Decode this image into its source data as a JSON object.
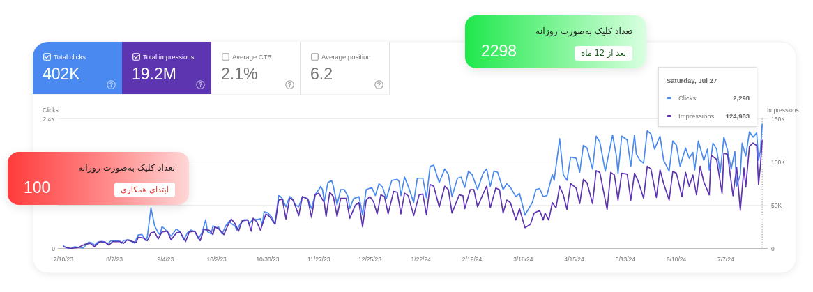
{
  "chart_data": {
    "type": "line",
    "ylabel": "Clicks",
    "y2label": "Impressions",
    "xlim": [
      "2023-07-07",
      "2024-07-30"
    ],
    "xticks": [
      {
        "value": "2023-07-10",
        "label": "7/10/23"
      },
      {
        "value": "2023-08-07",
        "label": "8/7/23"
      },
      {
        "value": "2023-09-04",
        "label": "9/4/23"
      },
      {
        "value": "2023-10-02",
        "label": "10/2/23"
      },
      {
        "value": "2023-10-30",
        "label": "10/30/23"
      },
      {
        "value": "2023-11-27",
        "label": "11/27/23"
      },
      {
        "value": "2023-12-25",
        "label": "12/25/23"
      },
      {
        "value": "2024-01-22",
        "label": "1/22/24"
      },
      {
        "value": "2024-02-19",
        "label": "2/19/24"
      },
      {
        "value": "2024-03-18",
        "label": "3/18/24"
      },
      {
        "value": "2024-04-15",
        "label": "4/15/24"
      },
      {
        "value": "2024-05-13",
        "label": "5/13/24"
      },
      {
        "value": "2024-06-10",
        "label": "6/10/24"
      },
      {
        "value": "2024-07-07",
        "label": "7/7/24"
      }
    ],
    "ylim": [
      0,
      2400
    ],
    "yticks": [
      0,
      {
        "value": 800,
        "label": null
      },
      {
        "value": 1600,
        "label": null
      },
      {
        "value": 2400,
        "label": "2.4K"
      }
    ],
    "y2lim": [
      0,
      150000
    ],
    "y2ticks": [
      0,
      {
        "value": 50000,
        "label": "50K"
      },
      {
        "value": 100000,
        "label": "100K"
      },
      {
        "value": 150000,
        "label": "150K"
      }
    ],
    "grid": "y",
    "legend": "top right",
    "series": [
      {
        "name": "Clicks",
        "color": "#4a8af0",
        "x": [
          "2023-07-10",
          "2023-07-12",
          "2023-07-14",
          "2023-07-16",
          "2023-07-18",
          "2023-07-21",
          "2023-07-23",
          "2023-07-24",
          "2023-07-26",
          "2023-07-27",
          "2023-07-29",
          "2023-07-31",
          "2023-08-02",
          "2023-08-03",
          "2023-08-05",
          "2023-08-08",
          "2023-08-10",
          "2023-08-11",
          "2023-08-12",
          "2023-08-15",
          "2023-08-17",
          "2023-08-18",
          "2023-08-20",
          "2023-08-22",
          "2023-08-23",
          "2023-08-24",
          "2023-08-25",
          "2023-08-27",
          "2023-08-29",
          "2023-08-31",
          "2023-09-01",
          "2023-09-02",
          "2023-09-03",
          "2023-09-05",
          "2023-09-07",
          "2023-09-08",
          "2023-09-10",
          "2023-09-12",
          "2023-09-14",
          "2023-09-16",
          "2023-09-18",
          "2023-09-20",
          "2023-09-22",
          "2023-09-24",
          "2023-09-26",
          "2023-09-27",
          "2023-09-29",
          "2023-09-30",
          "2023-10-02",
          "2023-10-03",
          "2023-10-05",
          "2023-10-07",
          "2023-10-09",
          "2023-10-10",
          "2023-10-12",
          "2023-10-13",
          "2023-10-15",
          "2023-10-17",
          "2023-10-19",
          "2023-10-20",
          "2023-10-22",
          "2023-10-24",
          "2023-10-26",
          "2023-10-27",
          "2023-10-28",
          "2023-10-30",
          "2023-11-01",
          "2023-11-03",
          "2023-11-05",
          "2023-11-06",
          "2023-11-07",
          "2023-11-09",
          "2023-11-11",
          "2023-11-12",
          "2023-11-14",
          "2023-11-16",
          "2023-11-18",
          "2023-11-21",
          "2023-11-23",
          "2023-11-25",
          "2023-11-27",
          "2023-11-28",
          "2023-11-29",
          "2023-11-30",
          "2023-12-02",
          "2023-12-04",
          "2023-12-05",
          "2023-12-07",
          "2023-12-09",
          "2023-12-11",
          "2023-12-13",
          "2023-12-14",
          "2023-12-16",
          "2023-12-19",
          "2023-12-21",
          "2023-12-23",
          "2023-12-26",
          "2023-12-28",
          "2023-12-30",
          "2024-01-01",
          "2024-01-03",
          "2024-01-06",
          "2024-01-09",
          "2024-01-10",
          "2024-01-11",
          "2024-01-13",
          "2024-01-15",
          "2024-01-18",
          "2024-01-20",
          "2024-01-23",
          "2024-01-25",
          "2024-01-27",
          "2024-01-29",
          "2024-01-30",
          "2024-02-01",
          "2024-02-04",
          "2024-02-06",
          "2024-02-08",
          "2024-02-11",
          "2024-02-13",
          "2024-02-15",
          "2024-02-17",
          "2024-02-19",
          "2024-02-22",
          "2024-02-25",
          "2024-02-27",
          "2024-02-29",
          "2024-03-02",
          "2024-03-04",
          "2024-03-07",
          "2024-03-09",
          "2024-03-11",
          "2024-03-14",
          "2024-03-16",
          "2024-03-19",
          "2024-03-23",
          "2024-03-25",
          "2024-03-27",
          "2024-03-29",
          "2024-03-31",
          "2024-04-03",
          "2024-04-04",
          "2024-04-07",
          "2024-04-09",
          "2024-04-11",
          "2024-04-13",
          "2024-04-16",
          "2024-04-18",
          "2024-04-20",
          "2024-04-22",
          "2024-04-25",
          "2024-04-27",
          "2024-04-29",
          "2024-05-02",
          "2024-05-06",
          "2024-05-08",
          "2024-05-09",
          "2024-05-11",
          "2024-05-14",
          "2024-05-16",
          "2024-05-18",
          "2024-05-19",
          "2024-05-21",
          "2024-05-23",
          "2024-05-25",
          "2024-05-27",
          "2024-05-29",
          "2024-06-01",
          "2024-06-03",
          "2024-06-06",
          "2024-06-08",
          "2024-06-10",
          "2024-06-12",
          "2024-06-15",
          "2024-06-17",
          "2024-06-19",
          "2024-06-20",
          "2024-06-22",
          "2024-06-25",
          "2024-06-27",
          "2024-06-28",
          "2024-06-30",
          "2024-07-02",
          "2024-07-04",
          "2024-07-06",
          "2024-07-08",
          "2024-07-10",
          "2024-07-12",
          "2024-07-13",
          "2024-07-15",
          "2024-07-16",
          "2024-07-18",
          "2024-07-20",
          "2024-07-22",
          "2024-07-24",
          "2024-07-25",
          "2024-07-26",
          "2024-07-27"
        ],
        "values": [
          50,
          10,
          0,
          30,
          20,
          10,
          90,
          120,
          100,
          60,
          120,
          130,
          120,
          80,
          140,
          150,
          130,
          100,
          150,
          160,
          120,
          100,
          250,
          260,
          210,
          150,
          210,
          750,
          420,
          290,
          250,
          400,
          380,
          310,
          230,
          270,
          360,
          310,
          160,
          290,
          340,
          310,
          180,
          290,
          530,
          310,
          270,
          420,
          380,
          400,
          270,
          420,
          510,
          460,
          420,
          340,
          460,
          530,
          530,
          460,
          550,
          530,
          550,
          440,
          680,
          660,
          590,
          460,
          980,
          960,
          920,
          770,
          960,
          940,
          810,
          770,
          960,
          920,
          740,
          1000,
          1090,
          1150,
          1090,
          870,
          1220,
          1260,
          1150,
          810,
          1090,
          1090,
          960,
          740,
          920,
          960,
          620,
          1090,
          1130,
          980,
          1200,
          1130,
          920,
          1260,
          1280,
          1240,
          980,
          1320,
          1150,
          850,
          1300,
          1300,
          940,
          1520,
          1540,
          1430,
          1220,
          1470,
          1370,
          960,
          1300,
          1320,
          1130,
          1430,
          1370,
          1090,
          1390,
          1470,
          1150,
          1430,
          1410,
          1090,
          1200,
          1130,
          960,
          1020,
          620,
          850,
          1090,
          1110,
          960,
          980,
          1370,
          1260,
          2030,
          1370,
          1260,
          1690,
          1670,
          1410,
          1910,
          1860,
          1470,
          2080,
          1970,
          1430,
          2100,
          1730,
          1390,
          2080,
          2010,
          1520,
          2100,
          1750,
          1630,
          1580,
          2180,
          2120,
          1840,
          2080,
          1630,
          1430,
          1990,
          1910,
          1520,
          1860,
          1670,
          1780,
          1450,
          1990,
          1630,
          1840,
          1450,
          1950,
          1840,
          1410,
          2060,
          1820,
          1470,
          1800,
          1150,
          1370,
          1950,
          1710,
          2160,
          2060,
          2140,
          1630,
          1800,
          2298
        ]
      },
      {
        "name": "Impressions",
        "color": "#5e35b1",
        "axis": "y2",
        "x": [
          "2023-07-10",
          "2023-07-14",
          "2023-07-18",
          "2023-07-22",
          "2023-07-25",
          "2023-07-27",
          "2023-07-30",
          "2023-08-02",
          "2023-08-04",
          "2023-08-06",
          "2023-08-10",
          "2023-08-12",
          "2023-08-14",
          "2023-08-17",
          "2023-08-19",
          "2023-08-20",
          "2023-08-23",
          "2023-08-25",
          "2023-08-27",
          "2023-08-29",
          "2023-08-31",
          "2023-09-02",
          "2023-09-05",
          "2023-09-07",
          "2023-09-10",
          "2023-09-12",
          "2023-09-15",
          "2023-09-17",
          "2023-09-20",
          "2023-09-23",
          "2023-09-25",
          "2023-09-28",
          "2023-09-30",
          "2023-10-01",
          "2023-10-03",
          "2023-10-06",
          "2023-10-08",
          "2023-10-10",
          "2023-10-12",
          "2023-10-14",
          "2023-10-16",
          "2023-10-19",
          "2023-10-21",
          "2023-10-22",
          "2023-10-24",
          "2023-10-26",
          "2023-10-29",
          "2023-10-31",
          "2023-11-03",
          "2023-11-05",
          "2023-11-07",
          "2023-11-09",
          "2023-11-11",
          "2023-11-13",
          "2023-11-16",
          "2023-11-18",
          "2023-11-21",
          "2023-11-23",
          "2023-11-25",
          "2023-11-27",
          "2023-11-30",
          "2023-12-01",
          "2023-12-03",
          "2023-12-05",
          "2023-12-07",
          "2023-12-09",
          "2023-12-12",
          "2023-12-14",
          "2023-12-17",
          "2023-12-19",
          "2023-12-21",
          "2023-12-23",
          "2023-12-25",
          "2023-12-27",
          "2023-12-29",
          "2023-12-31",
          "2024-01-02",
          "2024-01-04",
          "2024-01-07",
          "2024-01-09",
          "2024-01-11",
          "2024-01-13",
          "2024-01-15",
          "2024-01-18",
          "2024-01-21",
          "2024-01-23",
          "2024-01-25",
          "2024-01-27",
          "2024-01-29",
          "2024-02-01",
          "2024-02-04",
          "2024-02-06",
          "2024-02-08",
          "2024-02-12",
          "2024-02-14",
          "2024-02-15",
          "2024-02-18",
          "2024-02-20",
          "2024-02-22",
          "2024-02-25",
          "2024-02-27",
          "2024-02-29",
          "2024-03-03",
          "2024-03-05",
          "2024-03-07",
          "2024-03-09",
          "2024-03-11",
          "2024-03-14",
          "2024-03-16",
          "2024-03-19",
          "2024-03-22",
          "2024-03-24",
          "2024-03-27",
          "2024-03-29",
          "2024-03-30",
          "2024-04-01",
          "2024-04-03",
          "2024-04-05",
          "2024-04-07",
          "2024-04-09",
          "2024-04-11",
          "2024-04-13",
          "2024-04-16",
          "2024-04-18",
          "2024-04-20",
          "2024-04-22",
          "2024-04-25",
          "2024-04-27",
          "2024-04-29",
          "2024-05-03",
          "2024-05-05",
          "2024-05-07",
          "2024-05-09",
          "2024-05-11",
          "2024-05-14",
          "2024-05-16",
          "2024-05-18",
          "2024-05-20",
          "2024-05-23",
          "2024-05-25",
          "2024-05-27",
          "2024-05-30",
          "2024-06-01",
          "2024-06-03",
          "2024-06-06",
          "2024-06-08",
          "2024-06-10",
          "2024-06-13",
          "2024-06-15",
          "2024-06-17",
          "2024-06-19",
          "2024-06-21",
          "2024-06-23",
          "2024-06-25",
          "2024-06-28",
          "2024-06-29",
          "2024-07-02",
          "2024-07-05",
          "2024-07-06",
          "2024-07-08",
          "2024-07-11",
          "2024-07-13",
          "2024-07-15",
          "2024-07-17",
          "2024-07-18",
          "2024-07-20",
          "2024-07-22",
          "2024-07-24",
          "2024-07-25",
          "2024-07-26",
          "2024-07-27"
        ],
        "values": [
          2000,
          0,
          1000,
          5000,
          6000,
          2000,
          8000,
          7000,
          4000,
          8000,
          8000,
          6000,
          10000,
          8000,
          7000,
          13000,
          12000,
          9000,
          18000,
          19000,
          11000,
          19000,
          20000,
          10000,
          18000,
          19000,
          8000,
          19000,
          20000,
          9000,
          22000,
          21000,
          16000,
          25000,
          23000,
          16000,
          26000,
          34000,
          29000,
          20000,
          32000,
          33000,
          20000,
          35000,
          31000,
          21000,
          40000,
          37000,
          28000,
          56000,
          57000,
          34000,
          58000,
          56000,
          38000,
          60000,
          57000,
          36000,
          62000,
          64000,
          53000,
          37000,
          65000,
          60000,
          37000,
          58000,
          58000,
          35000,
          50000,
          53000,
          25000,
          56000,
          60000,
          54000,
          40000,
          62000,
          60000,
          40000,
          66000,
          65000,
          40000,
          64000,
          61000,
          38000,
          62000,
          63000,
          39000,
          74000,
          72000,
          48000,
          72000,
          68000,
          41000,
          62000,
          61000,
          46000,
          68000,
          68000,
          48000,
          63000,
          72000,
          47000,
          70000,
          68000,
          41000,
          56000,
          53000,
          33000,
          46000,
          24000,
          28000,
          41000,
          44000,
          33000,
          41000,
          33000,
          53000,
          47000,
          72000,
          62000,
          45000,
          75000,
          70000,
          52000,
          80000,
          76000,
          52000,
          90000,
          88000,
          45000,
          88000,
          85000,
          56000,
          87000,
          86000,
          56000,
          87000,
          78000,
          58000,
          95000,
          92000,
          59000,
          91000,
          75000,
          56000,
          89000,
          87000,
          60000,
          88000,
          72000,
          85000,
          62000,
          95000,
          77000,
          62000,
          108000,
          103000,
          64000,
          110000,
          109000,
          61000,
          94000,
          44000,
          93000,
          71000,
          118000,
          122000,
          119000,
          74000,
          95000,
          124983
        ]
      }
    ],
    "ref_lines": [
      {
        "axis": "x",
        "value": "2024-07-27",
        "color": "#9e9e9e",
        "line_style": "dotted"
      }
    ],
    "annotations": [
      "Total clicks",
      "402K",
      "Total impressions",
      "19.2M",
      "Average CTR",
      "2.1%",
      "Average position",
      "6.2",
      "تعداد کلیک به‌صورت روزانه",
      "100",
      "ابتدای همکاری",
      "تعداد کلیک به‌صورت روزانه",
      "2298",
      "بعد از 12 ماه",
      "2,298",
      "124,983",
      "Saturday, Jul 27"
    ]
  }
}
